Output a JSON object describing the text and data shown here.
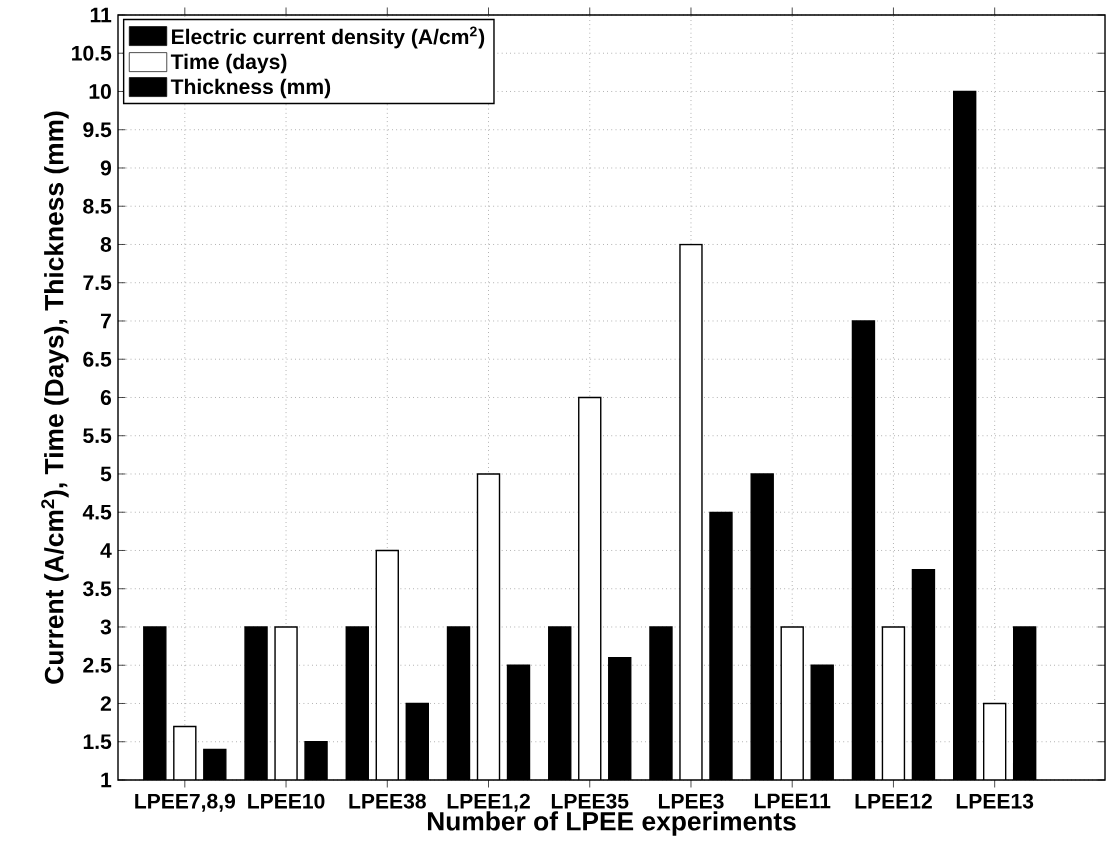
{
  "chart_data": {
    "type": "bar",
    "xlabel": "Number of LPEE experiments",
    "ylabel": "Current (A/cm$^{2}$), Time (Days), Thickness (mm)",
    "categories": [
      "LPEE7,8,9",
      "LPEE10",
      "LPEE38",
      "LPEE1,2",
      "LPEE35",
      "LPEE3",
      "LPEE11",
      "LPEE12",
      "LPEE13"
    ],
    "series": [
      {
        "name": "Electric current density (A/cm$^{2}$)",
        "color": "#000000",
        "values": [
          3,
          3,
          3,
          3,
          3,
          3,
          5,
          7,
          10
        ]
      },
      {
        "name": "Time (days)",
        "color": "#ffffff",
        "values": [
          1.7,
          3,
          4,
          5,
          6,
          8,
          3,
          3,
          2
        ]
      },
      {
        "name": "Thickness (mm)",
        "color": "#000000",
        "values": [
          1.4,
          1.5,
          2,
          2.5,
          2.6,
          4.5,
          2.5,
          3.75,
          3
        ]
      }
    ],
    "ylim": [
      1,
      11
    ],
    "yticks": [
      1,
      1.5,
      2,
      2.5,
      3,
      3.5,
      4,
      4.5,
      5,
      5.5,
      6,
      6.5,
      7,
      7.5,
      8,
      8.5,
      9,
      9.5,
      10,
      10.5,
      11
    ],
    "grid": true,
    "legend": "top left"
  }
}
